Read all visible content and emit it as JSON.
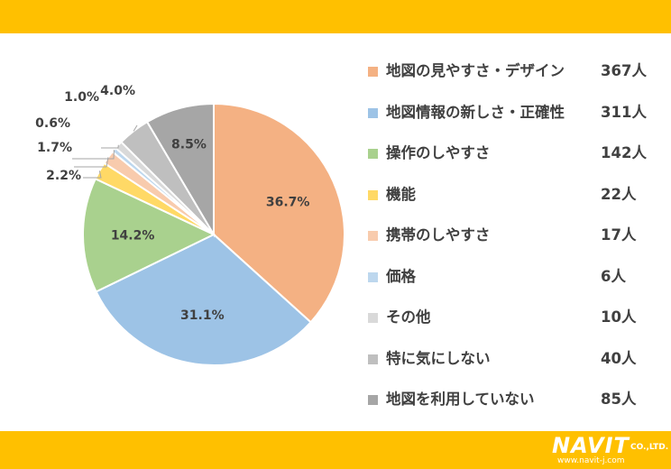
{
  "chart_data": {
    "type": "pie",
    "categories": [
      "地図の見やすさ・デザイン",
      "地図情報の新しさ・正確性",
      "操作のしやすさ",
      "機能",
      "携帯のしやすさ",
      "価格",
      "その他",
      "特に気にしない",
      "地図を利用していない"
    ],
    "values": [
      367,
      311,
      142,
      22,
      17,
      6,
      10,
      40,
      85
    ],
    "counts": [
      "367人",
      "311人",
      "142人",
      "22人",
      "17人",
      "6人",
      "10人",
      "40人",
      "85人"
    ],
    "percent_labels": [
      "36.7%",
      "31.1%",
      "14.2%",
      "2.2%",
      "1.7%",
      "0.6%",
      "1.0%",
      "4.0%",
      "8.5%"
    ],
    "colors": [
      "#f4b183",
      "#9dc3e6",
      "#a9d18e",
      "#ffd966",
      "#f8cbad",
      "#bdd7ee",
      "#d9d9d9",
      "#bfbfbf",
      "#a6a6a6"
    ],
    "start_angle_deg": 0,
    "direction": "clockwise",
    "legend_position": "right"
  },
  "logo": {
    "name": "NAVIT",
    "suffix": "CO.,LTD.",
    "url": "www.navit-j.com"
  }
}
